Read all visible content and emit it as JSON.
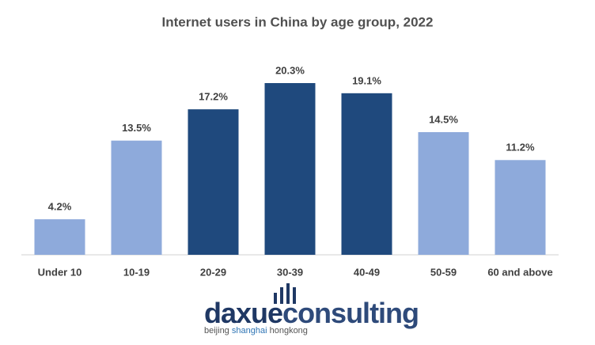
{
  "chart_data": {
    "type": "bar",
    "title": "Internet users in China by age group, 2022",
    "categories": [
      "Under 10",
      "10-19",
      "20-29",
      "30-39",
      "40-49",
      "50-59",
      "60 and above"
    ],
    "values": [
      4.2,
      13.5,
      17.2,
      20.3,
      19.1,
      14.5,
      11.2
    ],
    "value_labels": [
      "4.2%",
      "13.5%",
      "17.2%",
      "20.3%",
      "19.1%",
      "14.5%",
      "11.2%"
    ],
    "colors": [
      "#8eaadb",
      "#8eaadb",
      "#1f497d",
      "#1f497d",
      "#1f497d",
      "#8eaadb",
      "#8eaadb"
    ]
  },
  "logo": {
    "name": [
      "daxue",
      "consulting"
    ],
    "cities": [
      "beijing",
      "shanghai",
      "hongkong"
    ]
  }
}
